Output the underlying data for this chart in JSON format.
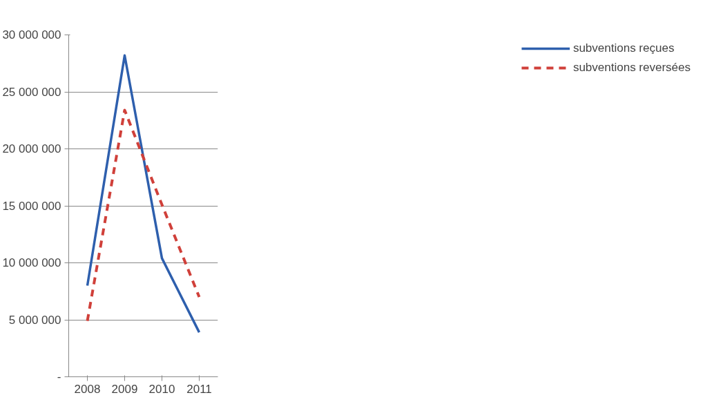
{
  "chart_data": {
    "type": "line",
    "categories": [
      "2008",
      "2009",
      "2010",
      "2011"
    ],
    "series": [
      {
        "name": "subventions reçues",
        "color": "#2e5fad",
        "values": [
          8000000,
          28200000,
          10400000,
          3900000
        ],
        "line_style": "solid"
      },
      {
        "name": "subventions reversées",
        "color": "#d0403a",
        "values": [
          4900000,
          23400000,
          15100000,
          7000000
        ],
        "line_style": "dashed"
      }
    ],
    "ylim": [
      0,
      30000000
    ],
    "yticks": [
      {
        "value": 0,
        "label": "-"
      },
      {
        "value": 5000000,
        "label": "5 000 000"
      },
      {
        "value": 10000000,
        "label": "10 000 000"
      },
      {
        "value": 15000000,
        "label": "15 000 000"
      },
      {
        "value": 20000000,
        "label": "20 000 000"
      },
      {
        "value": 25000000,
        "label": "25 000 000"
      },
      {
        "value": 30000000,
        "label": "30 000 000"
      }
    ],
    "grid": "y",
    "legend": "right",
    "marker": "none"
  }
}
